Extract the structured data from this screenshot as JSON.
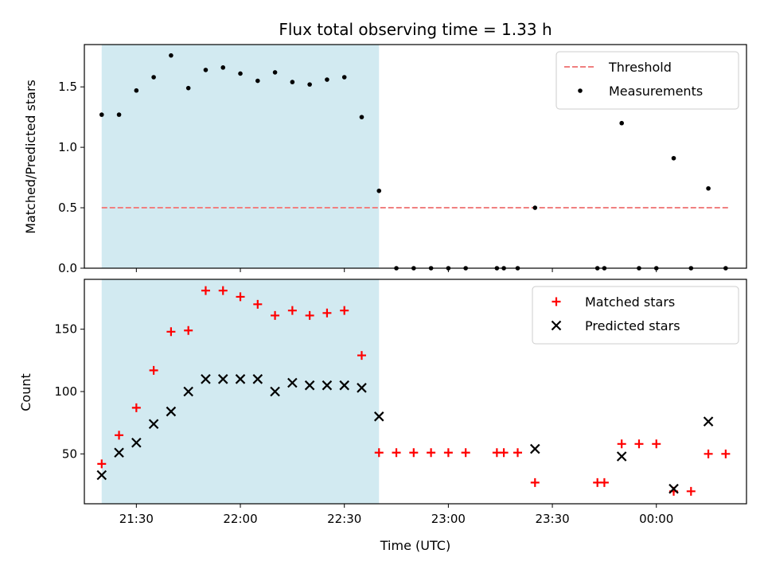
{
  "chart_data": {
    "title": "Flux total observing time = 1.33 h",
    "xlabel": "Time (UTC)",
    "x_ticks": [
      "21:30",
      "22:00",
      "22:30",
      "23:00",
      "23:30",
      "00:00"
    ],
    "x_range": [
      "21:15",
      "00:26"
    ],
    "highlight_span": [
      "21:20",
      "22:40"
    ],
    "highlight_color": "#add8e6",
    "panels": [
      {
        "type": "scatter",
        "ylabel": "Matched/Predicted stars",
        "ylim": [
          0,
          1.85
        ],
        "yticks": [
          0.0,
          0.5,
          1.0,
          1.5
        ],
        "ytick_labels": [
          "0.0",
          "0.5",
          "1.0",
          "1.5"
        ],
        "legend_position": "upper right",
        "threshold": {
          "name": "Threshold",
          "value": 0.5,
          "x_from": "21:20",
          "x_to": "00:21",
          "color": "#f08080",
          "style": "dashed"
        },
        "series": [
          {
            "name": "Measurements",
            "marker": "dot",
            "color": "#000000",
            "x": [
              "21:20",
              "21:25",
              "21:30",
              "21:35",
              "21:40",
              "21:45",
              "21:50",
              "21:55",
              "22:00",
              "22:05",
              "22:10",
              "22:15",
              "22:20",
              "22:25",
              "22:30",
              "22:35",
              "22:40",
              "22:45",
              "22:50",
              "22:55",
              "23:00",
              "23:05",
              "23:14",
              "23:16",
              "23:20",
              "23:25",
              "23:43",
              "23:45",
              "23:50",
              "23:55",
              "00:00",
              "00:05",
              "00:10",
              "00:15",
              "00:20"
            ],
            "y": [
              1.27,
              1.27,
              1.47,
              1.58,
              1.76,
              1.49,
              1.64,
              1.66,
              1.61,
              1.55,
              1.62,
              1.54,
              1.52,
              1.56,
              1.58,
              1.25,
              0.64,
              0,
              0,
              0,
              0,
              0,
              0,
              0,
              0,
              0.5,
              0,
              0,
              1.2,
              0,
              0,
              0.91,
              0,
              0.66,
              0
            ]
          }
        ]
      },
      {
        "type": "scatter",
        "ylabel": "Count",
        "ylim": [
          10,
          190
        ],
        "yticks": [
          50,
          100,
          150
        ],
        "ytick_labels": [
          "50",
          "100",
          "150"
        ],
        "legend_position": "upper right",
        "series": [
          {
            "name": "Matched stars",
            "marker": "plus",
            "color": "#ff0000",
            "x": [
              "21:20",
              "21:25",
              "21:30",
              "21:35",
              "21:40",
              "21:45",
              "21:50",
              "21:55",
              "22:00",
              "22:05",
              "22:10",
              "22:15",
              "22:20",
              "22:25",
              "22:30",
              "22:35",
              "22:40",
              "22:45",
              "22:50",
              "22:55",
              "23:00",
              "23:05",
              "23:14",
              "23:16",
              "23:20",
              "23:25",
              "23:43",
              "23:45",
              "23:50",
              "23:55",
              "00:00",
              "00:05",
              "00:10",
              "00:15",
              "00:20"
            ],
            "y": [
              42,
              65,
              87,
              117,
              148,
              149,
              181,
              181,
              176,
              170,
              161,
              165,
              161,
              163,
              165,
              129,
              51,
              51,
              51,
              51,
              51,
              51,
              51,
              51,
              51,
              27,
              27,
              27,
              58,
              58,
              58,
              20,
              20,
              50,
              50
            ]
          },
          {
            "name": "Predicted stars",
            "marker": "x",
            "color": "#000000",
            "x": [
              "21:20",
              "21:25",
              "21:30",
              "21:35",
              "21:40",
              "21:45",
              "21:50",
              "21:55",
              "22:00",
              "22:05",
              "22:10",
              "22:15",
              "22:20",
              "22:25",
              "22:30",
              "22:35",
              "22:40",
              "23:25",
              "23:50",
              "00:05",
              "00:15"
            ],
            "y": [
              33,
              51,
              59,
              74,
              84,
              100,
              110,
              110,
              110,
              110,
              100,
              107,
              105,
              105,
              105,
              103,
              80,
              54,
              48,
              22,
              76
            ]
          }
        ]
      }
    ]
  }
}
